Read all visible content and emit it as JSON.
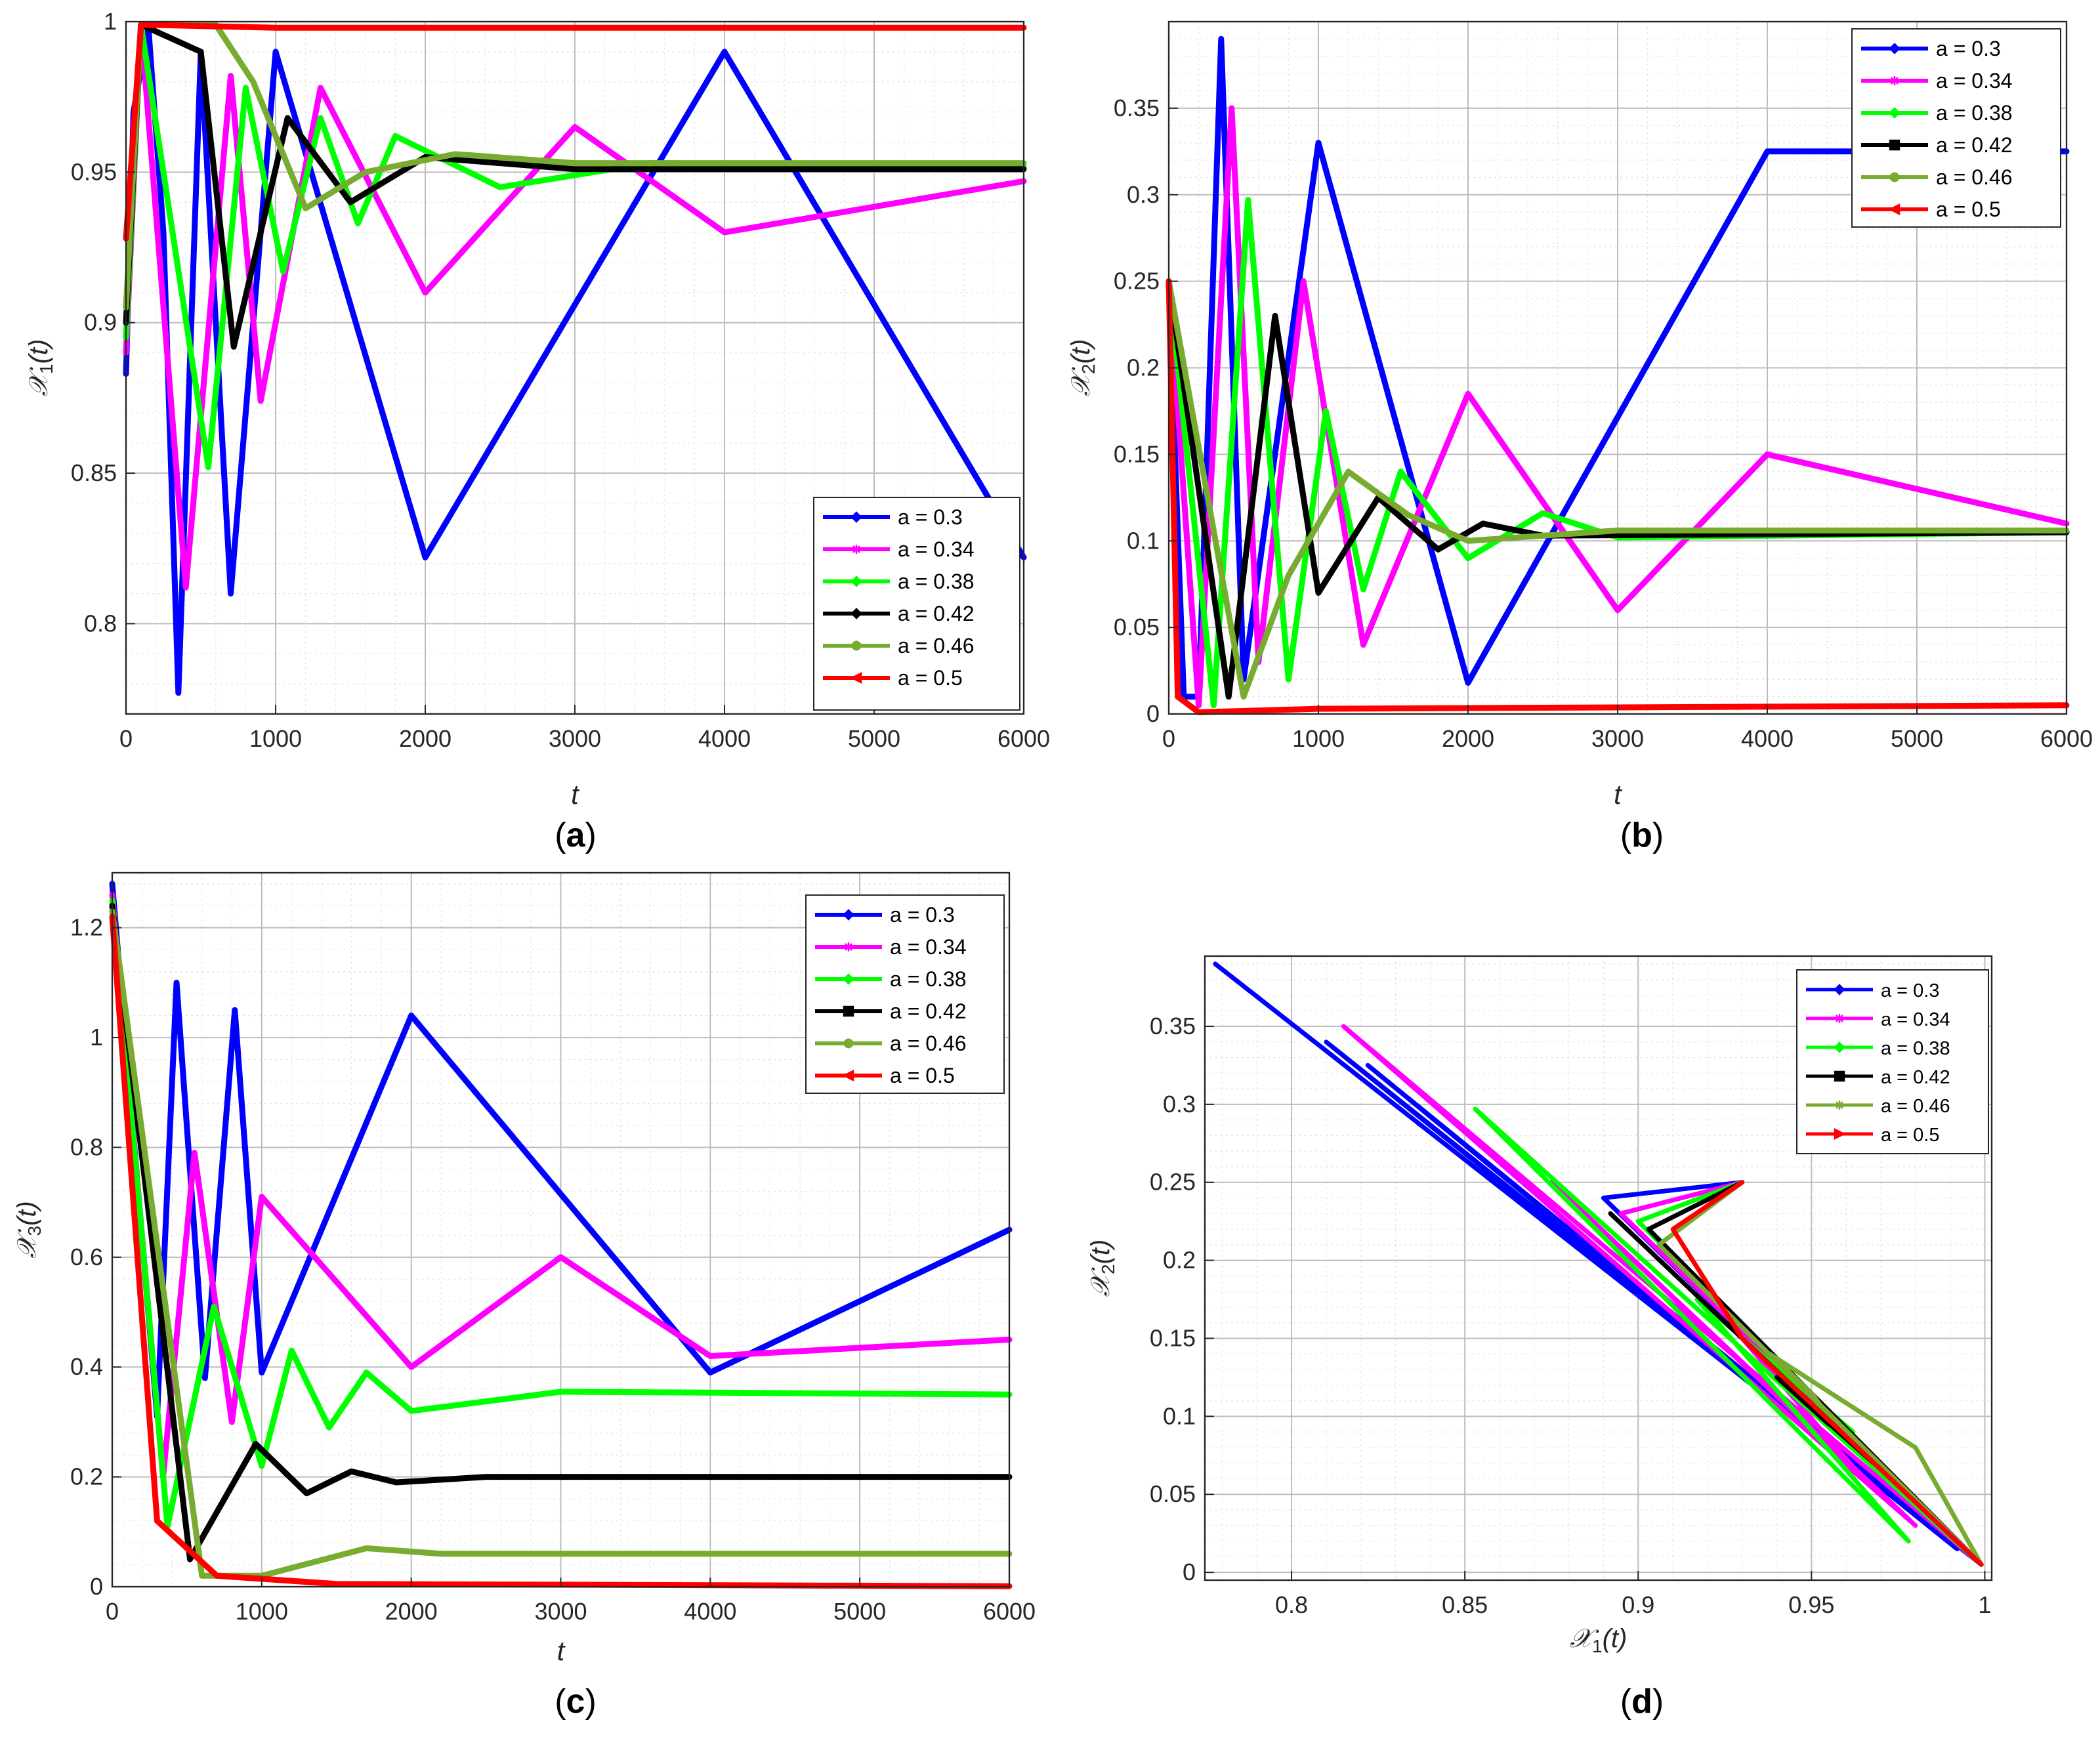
{
  "chart_data": [
    {
      "panel": "(a)",
      "type": "line",
      "xlabel": "t",
      "ylabel": "X1(t)",
      "ylabel_main": "𝒳",
      "ylabel_sub": "1",
      "ylabel_arg": "(t)",
      "xlim": [
        0,
        6000
      ],
      "ylim": [
        0.77,
        1.0
      ],
      "xticks": [
        0,
        1000,
        2000,
        3000,
        4000,
        5000,
        6000
      ],
      "yticks": [
        0.8,
        0.85,
        0.9,
        0.95,
        1
      ],
      "ytick_labels": [
        "0.8",
        "0.85",
        "0.9",
        "0.95",
        "1"
      ],
      "legend_position": "lower-right",
      "series": [
        {
          "name": "a = 0.3",
          "color": "#0000ff",
          "marker": "diamond",
          "x": [
            0,
            50,
            150,
            250,
            350,
            500,
            700,
            1000,
            2000,
            4000,
            6000
          ],
          "values": [
            0.883,
            0.97,
            0.998,
            0.93,
            0.777,
            0.99,
            0.81,
            0.99,
            0.822,
            0.99,
            0.822
          ]
        },
        {
          "name": "a = 0.34",
          "color": "#ff00ff",
          "marker": "star",
          "x": [
            0,
            100,
            400,
            700,
            900,
            1300,
            2000,
            3000,
            4000,
            6000
          ],
          "values": [
            0.89,
            0.999,
            0.812,
            0.982,
            0.874,
            0.978,
            0.91,
            0.965,
            0.93,
            0.947
          ]
        },
        {
          "name": "a = 0.38",
          "color": "#00ff00",
          "marker": "diamond",
          "x": [
            0,
            100,
            550,
            800,
            1050,
            1300,
            1550,
            1800,
            2500,
            3500,
            6000
          ],
          "values": [
            0.895,
            0.999,
            0.852,
            0.978,
            0.917,
            0.968,
            0.933,
            0.962,
            0.945,
            0.953,
            0.952
          ]
        },
        {
          "name": "a = 0.42",
          "color": "#000000",
          "marker": "diamond",
          "x": [
            0,
            100,
            500,
            720,
            1080,
            1500,
            2000,
            3000,
            6000
          ],
          "values": [
            0.9,
            0.999,
            0.99,
            0.892,
            0.968,
            0.94,
            0.955,
            0.951,
            0.951
          ]
        },
        {
          "name": "a = 0.46",
          "color": "#77ac30",
          "marker": "circle",
          "x": [
            0,
            100,
            600,
            850,
            1200,
            1600,
            2200,
            3000,
            6000
          ],
          "values": [
            0.905,
            0.999,
            0.999,
            0.98,
            0.938,
            0.95,
            0.956,
            0.953,
            0.953
          ]
        },
        {
          "name": "a = 0.5",
          "color": "#ff0000",
          "marker": "triangle-left",
          "x": [
            0,
            100,
            1000,
            6000
          ],
          "values": [
            0.928,
            0.999,
            0.998,
            0.998
          ]
        }
      ]
    },
    {
      "panel": "(b)",
      "type": "line",
      "xlabel": "t",
      "ylabel": "X2(t)",
      "ylabel_main": "𝒳",
      "ylabel_sub": "2",
      "ylabel_arg": "(t)",
      "xlim": [
        0,
        6000
      ],
      "ylim": [
        0,
        0.4
      ],
      "xticks": [
        0,
        1000,
        2000,
        3000,
        4000,
        5000,
        6000
      ],
      "yticks": [
        0,
        0.05,
        0.1,
        0.15,
        0.2,
        0.25,
        0.3,
        0.35
      ],
      "ytick_labels": [
        "0",
        "0.05",
        "0.1",
        "0.15",
        "0.2",
        "0.25",
        "0.3",
        "0.35"
      ],
      "legend_position": "top-right",
      "series": [
        {
          "name": "a = 0.3",
          "color": "#0000ff",
          "marker": "diamond",
          "x": [
            0,
            100,
            200,
            350,
            500,
            1000,
            2000,
            4000,
            6000
          ],
          "values": [
            0.25,
            0.01,
            0.01,
            0.39,
            0.02,
            0.33,
            0.018,
            0.325,
            0.325
          ]
        },
        {
          "name": "a = 0.34",
          "color": "#ff00ff",
          "marker": "star",
          "x": [
            0,
            200,
            420,
            600,
            900,
            1300,
            2000,
            3000,
            4000,
            6000
          ],
          "values": [
            0.25,
            0.005,
            0.35,
            0.03,
            0.25,
            0.04,
            0.185,
            0.06,
            0.15,
            0.11
          ]
        },
        {
          "name": "a = 0.38",
          "color": "#00ff00",
          "marker": "diamond",
          "x": [
            0,
            300,
            530,
            800,
            1050,
            1300,
            1550,
            2000,
            2500,
            3000,
            6000
          ],
          "values": [
            0.25,
            0.005,
            0.297,
            0.02,
            0.175,
            0.072,
            0.14,
            0.09,
            0.116,
            0.102,
            0.105
          ]
        },
        {
          "name": "a = 0.42",
          "color": "#000000",
          "marker": "square",
          "x": [
            0,
            400,
            710,
            1000,
            1400,
            1800,
            2100,
            2500,
            6000
          ],
          "values": [
            0.25,
            0.01,
            0.23,
            0.07,
            0.125,
            0.095,
            0.11,
            0.103,
            0.105
          ]
        },
        {
          "name": "a = 0.46",
          "color": "#77ac30",
          "marker": "circle",
          "x": [
            0,
            500,
            800,
            1200,
            1600,
            2000,
            3000,
            6000
          ],
          "values": [
            0.25,
            0.01,
            0.08,
            0.14,
            0.115,
            0.1,
            0.106,
            0.106
          ]
        },
        {
          "name": "a = 0.5",
          "color": "#ff0000",
          "marker": "triangle-left",
          "x": [
            0,
            60,
            200,
            1000,
            6000
          ],
          "values": [
            0.25,
            0.01,
            0.001,
            0.003,
            0.005
          ]
        }
      ]
    },
    {
      "panel": "(c)",
      "type": "line",
      "xlabel": "t",
      "ylabel": "X3(t)",
      "ylabel_main": "𝒳",
      "ylabel_sub": "3",
      "ylabel_arg": "(t)",
      "xlim": [
        0,
        6000
      ],
      "ylim": [
        0,
        1.3
      ],
      "xticks": [
        0,
        1000,
        2000,
        3000,
        4000,
        5000,
        6000
      ],
      "yticks": [
        0,
        0.2,
        0.4,
        0.6,
        0.8,
        1,
        1.2
      ],
      "ytick_labels": [
        "0",
        "0.2",
        "0.4",
        "0.6",
        "0.8",
        "1",
        "1.2"
      ],
      "legend_position": "top-right",
      "series": [
        {
          "name": "a = 0.3",
          "color": "#0000ff",
          "marker": "diamond",
          "x": [
            0,
            300,
            430,
            620,
            820,
            1000,
            2000,
            4000,
            6000
          ],
          "values": [
            1.28,
            0.31,
            1.1,
            0.38,
            1.05,
            0.39,
            1.04,
            0.39,
            0.65
          ]
        },
        {
          "name": "a = 0.34",
          "color": "#ff00ff",
          "marker": "star",
          "x": [
            0,
            340,
            550,
            800,
            1000,
            2000,
            3000,
            4000,
            6000
          ],
          "values": [
            1.26,
            0.2,
            0.79,
            0.3,
            0.71,
            0.4,
            0.6,
            0.42,
            0.45
          ]
        },
        {
          "name": "a = 0.38",
          "color": "#00ff00",
          "marker": "diamond",
          "x": [
            0,
            370,
            680,
            1000,
            1200,
            1450,
            1700,
            2000,
            3000,
            6000
          ],
          "values": [
            1.25,
            0.11,
            0.51,
            0.22,
            0.43,
            0.29,
            0.39,
            0.32,
            0.355,
            0.35
          ]
        },
        {
          "name": "a = 0.42",
          "color": "#000000",
          "marker": "square",
          "x": [
            0,
            520,
            960,
            1300,
            1600,
            1900,
            2500,
            6000
          ],
          "values": [
            1.24,
            0.05,
            0.26,
            0.17,
            0.21,
            0.19,
            0.2,
            0.2
          ]
        },
        {
          "name": "a = 0.46",
          "color": "#77ac30",
          "marker": "circle",
          "x": [
            0,
            600,
            1000,
            1700,
            2200,
            6000
          ],
          "values": [
            1.23,
            0.02,
            0.02,
            0.07,
            0.06,
            0.06
          ]
        },
        {
          "name": "a = 0.5",
          "color": "#ff0000",
          "marker": "triangle-left",
          "x": [
            0,
            300,
            700,
            1500,
            6000
          ],
          "values": [
            1.22,
            0.12,
            0.02,
            0.005,
            0.001
          ]
        }
      ]
    },
    {
      "panel": "(d)",
      "type": "line",
      "xlabel": "X1(t)",
      "ylabel": "X2(t)",
      "xlabel_main": "𝒳",
      "xlabel_sub": "1",
      "xlabel_arg": "(t)",
      "ylabel_main": "𝒳",
      "ylabel_sub": "2",
      "ylabel_arg": "(t)",
      "xlim": [
        0.775,
        1.002
      ],
      "ylim": [
        -0.005,
        0.395
      ],
      "xticks": [
        0.8,
        0.85,
        0.9,
        0.95,
        1
      ],
      "xtick_labels": [
        "0.8",
        "0.85",
        "0.9",
        "0.95",
        "1"
      ],
      "yticks": [
        0,
        0.05,
        0.1,
        0.15,
        0.2,
        0.25,
        0.3,
        0.35
      ],
      "ytick_labels": [
        "0",
        "0.05",
        "0.1",
        "0.15",
        "0.2",
        "0.25",
        "0.3",
        "0.35"
      ],
      "legend_position": "top-right",
      "series": [
        {
          "name": "a = 0.3",
          "color": "#0000ff",
          "marker": "diamond",
          "x": [
            0.93,
            0.89,
            0.999,
            0.778,
            0.999,
            0.81,
            0.992,
            0.822,
            0.999
          ],
          "values": [
            0.25,
            0.24,
            0.005,
            0.39,
            0.005,
            0.34,
            0.015,
            0.325,
            0.005
          ]
        },
        {
          "name": "a = 0.34",
          "color": "#ff00ff",
          "marker": "star",
          "x": [
            0.93,
            0.895,
            0.999,
            0.815,
            0.98,
            0.875,
            0.965,
            0.93,
            0.946
          ],
          "values": [
            0.25,
            0.23,
            0.005,
            0.35,
            0.03,
            0.25,
            0.06,
            0.15,
            0.11
          ]
        },
        {
          "name": "a = 0.38",
          "color": "#00ff00",
          "marker": "diamond",
          "x": [
            0.93,
            0.9,
            0.999,
            0.853,
            0.978,
            0.917,
            0.962,
            0.945,
            0.952
          ],
          "values": [
            0.25,
            0.225,
            0.005,
            0.297,
            0.02,
            0.175,
            0.09,
            0.116,
            0.105
          ]
        },
        {
          "name": "a = 0.42",
          "color": "#000000",
          "marker": "square",
          "x": [
            0.93,
            0.903,
            0.999,
            0.892,
            0.968,
            0.94,
            0.955,
            0.951
          ],
          "values": [
            0.25,
            0.22,
            0.005,
            0.23,
            0.07,
            0.125,
            0.095,
            0.105
          ]
        },
        {
          "name": "a = 0.46",
          "color": "#77ac30",
          "marker": "star",
          "x": [
            0.93,
            0.906,
            0.999,
            0.98,
            0.938,
            0.95,
            0.953
          ],
          "values": [
            0.25,
            0.21,
            0.005,
            0.08,
            0.14,
            0.115,
            0.106
          ]
        },
        {
          "name": "a = 0.5",
          "color": "#ff0000",
          "marker": "triangle-right",
          "x": [
            0.93,
            0.91,
            0.93,
            0.999
          ],
          "values": [
            0.25,
            0.22,
            0.15,
            0.005
          ]
        }
      ]
    }
  ]
}
